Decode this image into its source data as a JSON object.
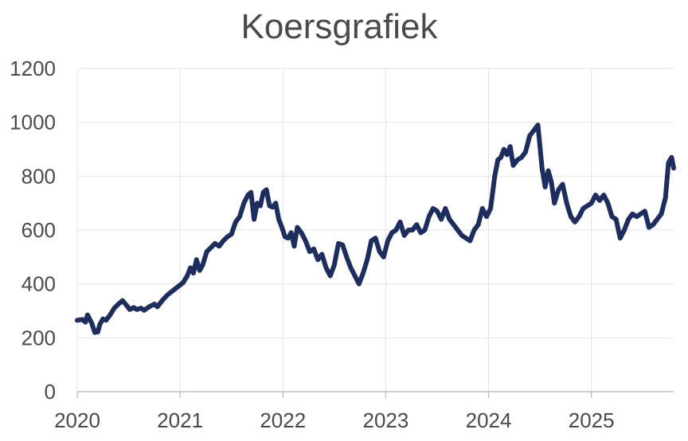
{
  "chart_data": {
    "type": "line",
    "title": "Koersgrafiek",
    "xlabel": "",
    "ylabel": "",
    "ylim": [
      0,
      1200
    ],
    "xlim": [
      2020.0,
      2025.8
    ],
    "y_ticks": [
      0,
      200,
      400,
      600,
      800,
      1000,
      1200
    ],
    "x_ticks": [
      2020,
      2021,
      2022,
      2023,
      2024,
      2025
    ],
    "x_tick_labels": [
      "2020",
      "2021",
      "2022",
      "2023",
      "2024",
      "2025"
    ],
    "grid": true,
    "legend": "none",
    "line_color": "#1c2d5e",
    "series": [
      {
        "x": [
          2020.0,
          2020.05,
          2020.08,
          2020.1,
          2020.14,
          2020.17,
          2020.2,
          2020.22,
          2020.25,
          2020.28,
          2020.32,
          2020.36,
          2020.4,
          2020.44,
          2020.48,
          2020.51,
          2020.55,
          2020.58,
          2020.62,
          2020.65,
          2020.7,
          2020.75,
          2020.78,
          2020.83,
          2020.88,
          2020.93,
          2020.98,
          2021.03,
          2021.07,
          2021.1,
          2021.13,
          2021.16,
          2021.19,
          2021.22,
          2021.26,
          2021.3,
          2021.34,
          2021.38,
          2021.42,
          2021.46,
          2021.5,
          2021.54,
          2021.58,
          2021.62,
          2021.66,
          2021.69,
          2021.72,
          2021.75,
          2021.78,
          2021.81,
          2021.84,
          2021.87,
          2021.9,
          2021.93,
          2021.96,
          2021.99,
          2022.02,
          2022.05,
          2022.08,
          2022.11,
          2022.14,
          2022.18,
          2022.22,
          2022.26,
          2022.3,
          2022.34,
          2022.38,
          2022.42,
          2022.46,
          2022.5,
          2022.54,
          2022.58,
          2022.62,
          2022.66,
          2022.7,
          2022.74,
          2022.78,
          2022.82,
          2022.86,
          2022.9,
          2022.94,
          2022.98,
          2023.02,
          2023.06,
          2023.1,
          2023.14,
          2023.18,
          2023.22,
          2023.26,
          2023.3,
          2023.34,
          2023.38,
          2023.42,
          2023.46,
          2023.5,
          2023.54,
          2023.58,
          2023.62,
          2023.66,
          2023.7,
          2023.74,
          2023.78,
          2023.82,
          2023.86,
          2023.9,
          2023.94,
          2023.98,
          2024.02,
          2024.06,
          2024.09,
          2024.12,
          2024.15,
          2024.18,
          2024.21,
          2024.24,
          2024.28,
          2024.32,
          2024.36,
          2024.4,
          2024.44,
          2024.48,
          2024.52,
          2024.55,
          2024.58,
          2024.61,
          2024.64,
          2024.68,
          2024.72,
          2024.76,
          2024.8,
          2024.84,
          2024.88,
          2024.92,
          2024.96,
          2025.0,
          2025.04,
          2025.08,
          2025.12,
          2025.16,
          2025.2,
          2025.24,
          2025.28,
          2025.32,
          2025.36,
          2025.4,
          2025.44,
          2025.48,
          2025.52,
          2025.56,
          2025.6,
          2025.64,
          2025.68,
          2025.72,
          2025.75,
          2025.78,
          2025.8
        ],
        "y": [
          265,
          268,
          258,
          285,
          255,
          220,
          222,
          250,
          270,
          265,
          285,
          310,
          325,
          338,
          320,
          305,
          312,
          305,
          310,
          302,
          315,
          325,
          315,
          340,
          360,
          375,
          390,
          405,
          430,
          460,
          440,
          490,
          450,
          470,
          520,
          535,
          550,
          540,
          560,
          575,
          585,
          630,
          650,
          700,
          730,
          740,
          640,
          700,
          690,
          740,
          750,
          690,
          685,
          700,
          640,
          610,
          575,
          570,
          590,
          540,
          610,
          590,
          560,
          520,
          530,
          490,
          510,
          460,
          430,
          470,
          550,
          545,
          500,
          460,
          430,
          400,
          440,
          490,
          560,
          570,
          520,
          500,
          560,
          590,
          600,
          630,
          580,
          600,
          600,
          620,
          590,
          600,
          650,
          680,
          670,
          640,
          680,
          640,
          620,
          600,
          580,
          570,
          560,
          600,
          620,
          680,
          650,
          680,
          800,
          860,
          870,
          900,
          880,
          910,
          840,
          860,
          870,
          890,
          950,
          970,
          990,
          830,
          760,
          820,
          780,
          700,
          750,
          770,
          700,
          650,
          630,
          650,
          680,
          690,
          700,
          730,
          710,
          730,
          700,
          650,
          640,
          570,
          600,
          640,
          660,
          650,
          660,
          670,
          610,
          620,
          640,
          660,
          720,
          850,
          870,
          830
        ]
      }
    ]
  }
}
